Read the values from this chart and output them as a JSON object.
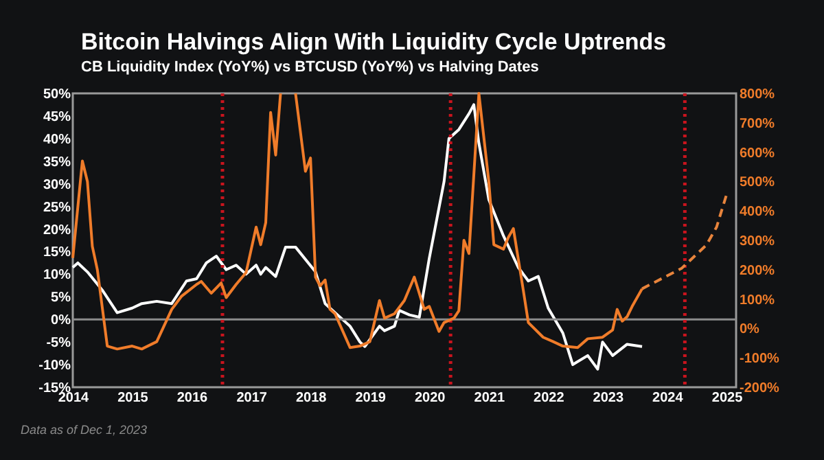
{
  "chart_data": {
    "type": "line",
    "title": "Bitcoin Halvings Align With Liquidity Cycle Uptrends",
    "subtitle": "CB Liquidity Index (YoY%) vs BTCUSD (YoY%) vs Halving Dates",
    "annotations": [
      "Data as of Dec 1, 2023"
    ],
    "xlim": [
      "2014-01-01",
      "2025-03-01"
    ],
    "xticks": [
      {
        "value": "2014-01-01",
        "label": "2014"
      },
      {
        "value": "2015-01-01",
        "label": "2015"
      },
      {
        "value": "2016-01-01",
        "label": "2016"
      },
      {
        "value": "2017-01-01",
        "label": "2017"
      },
      {
        "value": "2018-01-01",
        "label": "2018"
      },
      {
        "value": "2019-01-01",
        "label": "2019"
      },
      {
        "value": "2020-01-01",
        "label": "2020"
      },
      {
        "value": "2021-01-01",
        "label": "2021"
      },
      {
        "value": "2022-01-01",
        "label": "2022"
      },
      {
        "value": "2023-01-01",
        "label": "2023"
      },
      {
        "value": "2024-01-01",
        "label": "2024"
      },
      {
        "value": "2025-01-01",
        "label": "2025"
      }
    ],
    "ylim": [
      -15,
      50
    ],
    "yticks": [
      {
        "value": -15,
        "label": "-15%"
      },
      {
        "value": -10,
        "label": "-10%"
      },
      {
        "value": -5,
        "label": "-5%"
      },
      {
        "value": 0,
        "label": "0%"
      },
      {
        "value": 5,
        "label": "5%"
      },
      {
        "value": 10,
        "label": "10%"
      },
      {
        "value": 15,
        "label": "15%"
      },
      {
        "value": 20,
        "label": "20%"
      },
      {
        "value": 25,
        "label": "25%"
      },
      {
        "value": 30,
        "label": "30%"
      },
      {
        "value": 35,
        "label": "35%"
      },
      {
        "value": 40,
        "label": "40%"
      },
      {
        "value": 45,
        "label": "45%"
      },
      {
        "value": 50,
        "label": "50%"
      }
    ],
    "y2lim": [
      -200,
      800
    ],
    "y2ticks": [
      {
        "value": -200,
        "label": "-200%"
      },
      {
        "value": -100,
        "label": "-100%"
      },
      {
        "value": 0,
        "label": "0%"
      },
      {
        "value": 100,
        "label": "100%"
      },
      {
        "value": 200,
        "label": "200%"
      },
      {
        "value": 300,
        "label": "300%"
      },
      {
        "value": 400,
        "label": "400%"
      },
      {
        "value": 500,
        "label": "500%"
      },
      {
        "value": 600,
        "label": "600%"
      },
      {
        "value": 700,
        "label": "700%"
      },
      {
        "value": 800,
        "label": "800%"
      }
    ],
    "grid": false,
    "marker": "none",
    "series": [
      {
        "color": "#ffffff",
        "line_style": "solid",
        "x": [
          "2014-01",
          "2014-02",
          "2014-04",
          "2014-07",
          "2014-10",
          "2015-01",
          "2015-03",
          "2015-06",
          "2015-09",
          "2015-12",
          "2016-02",
          "2016-04",
          "2016-06",
          "2016-08",
          "2016-10",
          "2016-12",
          "2017-02",
          "2017-03",
          "2017-04",
          "2017-06",
          "2017-08",
          "2017-10",
          "2018-02",
          "2018-04",
          "2018-06",
          "2018-09",
          "2018-11",
          "2018-12",
          "2019-03",
          "2019-04",
          "2019-06",
          "2019-07",
          "2019-09",
          "2019-11",
          "2020-01",
          "2020-04",
          "2020-05",
          "2020-07",
          "2020-09",
          "2020-10",
          "2020-11",
          "2021-01",
          "2021-04",
          "2021-07",
          "2021-09",
          "2021-11",
          "2022-01",
          "2022-04",
          "2022-06",
          "2022-09",
          "2022-11",
          "2022-12",
          "2023-02",
          "2023-05",
          "2023-08"
        ],
        "values": [
          11.5,
          12.5,
          10.5,
          6.5,
          1.5,
          2.5,
          3.5,
          4,
          3.5,
          8.5,
          9,
          12.5,
          14,
          11,
          12,
          10,
          12,
          10,
          11.5,
          9.5,
          16,
          16,
          10.5,
          3.5,
          1.5,
          -1.5,
          -5,
          -6,
          -1.5,
          -2.5,
          -1.5,
          2,
          1,
          0.5,
          13.5,
          30.5,
          40,
          42,
          45.5,
          47.5,
          39,
          26.5,
          18.5,
          11.5,
          8.5,
          9.5,
          2.5,
          -3,
          -10,
          -8,
          -11,
          -5,
          -8,
          -5.5,
          -6
        ]
      },
      {
        "color": "#f07c2a",
        "axis": "y2",
        "line_style": "solid",
        "x": [
          "2014-01",
          "2014-03",
          "2014-04",
          "2014-05",
          "2014-06",
          "2014-08",
          "2014-10",
          "2015-01",
          "2015-03",
          "2015-06",
          "2015-09",
          "2015-11",
          "2016-02",
          "2016-03",
          "2016-05",
          "2016-07",
          "2016-08",
          "2016-10",
          "2016-12",
          "2017-02",
          "2017-03",
          "2017-04",
          "2017-05",
          "2017-06",
          "2017-07",
          "2017-08",
          "2017-10",
          "2017-12",
          "2018-01",
          "2018-02",
          "2018-03",
          "2018-04",
          "2018-05",
          "2018-06",
          "2018-09",
          "2018-11",
          "2019-01",
          "2019-03",
          "2019-04",
          "2019-06",
          "2019-08",
          "2019-10",
          "2019-12",
          "2020-01",
          "2020-03",
          "2020-04",
          "2020-06",
          "2020-07",
          "2020-08",
          "2020-09",
          "2020-11",
          "2021-01",
          "2021-02",
          "2021-04",
          "2021-05",
          "2021-06",
          "2021-08",
          "2021-09",
          "2021-12",
          "2022-02",
          "2022-04",
          "2022-07",
          "2022-09",
          "2022-12",
          "2023-02",
          "2023-03",
          "2023-04",
          "2023-05",
          "2023-06",
          "2023-08"
        ],
        "values": [
          240,
          570,
          500,
          280,
          200,
          -60,
          -70,
          -60,
          -70,
          -45,
          65,
          110,
          150,
          160,
          120,
          155,
          105,
          150,
          190,
          345,
          285,
          360,
          735,
          590,
          800,
          null,
          800,
          535,
          580,
          175,
          145,
          165,
          65,
          50,
          -65,
          -60,
          -45,
          95,
          35,
          50,
          95,
          175,
          65,
          75,
          -10,
          20,
          35,
          60,
          300,
          255,
          800,
          500,
          285,
          270,
          310,
          340,
          130,
          20,
          -30,
          -45,
          -60,
          -65,
          -35,
          -30,
          -5,
          65,
          25,
          40,
          75,
          135
        ]
      },
      {
        "color": "#e8843c",
        "axis": "y2",
        "line_style": "dashed",
        "x": [
          "2023-08",
          "2024-04",
          "2024-09",
          "2024-11",
          "2025-01"
        ],
        "values": [
          135,
          205,
          285,
          345,
          455
        ]
      }
    ],
    "ref_lines": [
      {
        "axis": "y",
        "value": 0,
        "color": "#8c8c8c",
        "line_style": "solid"
      },
      {
        "axis": "x",
        "value": "2016-07-09",
        "color": "#c8141e",
        "line_style": "dotted"
      },
      {
        "axis": "x",
        "value": "2020-05-11",
        "color": "#c8141e",
        "line_style": "dotted"
      },
      {
        "axis": "x",
        "value": "2024-04-20",
        "color": "#c8141e",
        "line_style": "dotted"
      }
    ]
  }
}
